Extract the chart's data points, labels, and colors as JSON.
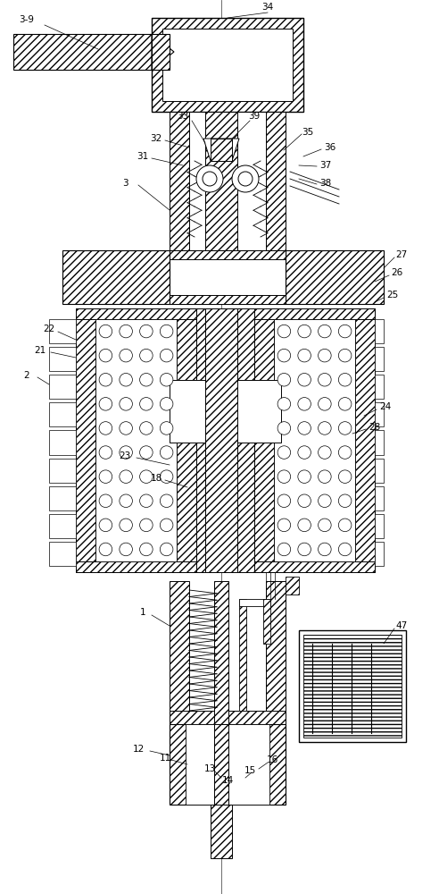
{
  "bg_color": "#ffffff",
  "lc": "#000000",
  "lw": 0.7,
  "fig_w": 4.92,
  "fig_h": 10.0,
  "dpi": 100
}
